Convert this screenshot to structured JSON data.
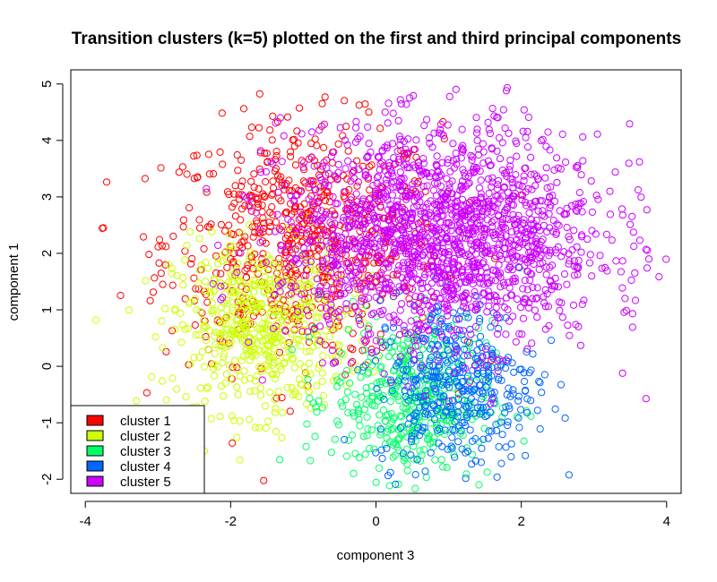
{
  "chart_data": {
    "type": "scatter",
    "title": "Transition clusters (k=5) plotted on the first and third principal components",
    "xlabel": "component 3",
    "ylabel": "component 1",
    "xlim": [
      -4.2,
      4.2
    ],
    "ylim": [
      -2.25,
      5.25
    ],
    "xticks": [
      "-4",
      "-2",
      "0",
      "2",
      "4"
    ],
    "xtick_values": [
      -4,
      -2,
      0,
      2,
      4
    ],
    "yticks": [
      "-2",
      "-1",
      "0",
      "1",
      "2",
      "3",
      "4",
      "5"
    ],
    "ytick_values": [
      -2,
      -1,
      0,
      1,
      2,
      3,
      4,
      5
    ],
    "marker": "open-circle",
    "legend_position": "bottom-left",
    "series": [
      {
        "name": "cluster 1",
        "color": "#FF0000",
        "center": [
          -1.0,
          2.2
        ],
        "spread": [
          0.95,
          1.05
        ],
        "count": 700
      },
      {
        "name": "cluster 2",
        "color": "#CCFF00",
        "center": [
          -1.6,
          0.7
        ],
        "spread": [
          0.6,
          0.75
        ],
        "count": 550
      },
      {
        "name": "cluster 3",
        "color": "#00FF66",
        "center": [
          0.5,
          -0.6
        ],
        "spread": [
          0.55,
          0.7
        ],
        "count": 450
      },
      {
        "name": "cluster 4",
        "color": "#0066FF",
        "center": [
          1.1,
          -0.3
        ],
        "spread": [
          0.55,
          0.75
        ],
        "count": 400
      },
      {
        "name": "cluster 5",
        "color": "#CC00FF",
        "center": [
          0.9,
          2.3
        ],
        "spread": [
          1.1,
          0.95
        ],
        "count": 1700
      }
    ]
  }
}
